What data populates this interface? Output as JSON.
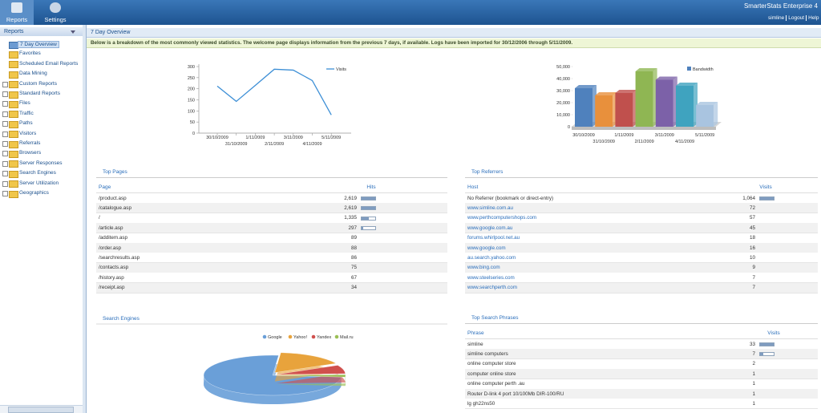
{
  "header": {
    "buttons": [
      "Reports",
      "Settings"
    ],
    "product": "SmarterStats Enterprise 4",
    "user_links": [
      "simline",
      "Logout",
      "Help"
    ]
  },
  "sidebar": {
    "title": "Reports",
    "items": [
      "7 Day Overview",
      "Favorites",
      "Scheduled Email Reports",
      "Data Mining",
      "Custom Reports",
      "Standard Reports",
      "Files",
      "Traffic",
      "Paths",
      "Visitors",
      "Referrals",
      "Browsers",
      "Server Responses",
      "Search Engines",
      "Server Utilization",
      "Geographics"
    ]
  },
  "tab": "7 Day Overview",
  "notice": "Below is a breakdown of the most commonly viewed statistics. The welcome page displays information from the previous 7 days, if available. Logs have been imported for 30/12/2006 through 5/11/2009.",
  "chart_data": [
    {
      "type": "line",
      "categories": [
        "30/10/2009",
        "31/10/2009",
        "1/11/2009",
        "2/11/2009",
        "3/11/2009",
        "4/11/2009",
        "5/11/2009"
      ],
      "series": [
        {
          "name": "Visits",
          "color": "#3d8fd6",
          "values": [
            212,
            143,
            215,
            288,
            284,
            237,
            82
          ]
        }
      ],
      "ylim": [
        0,
        300
      ],
      "yticks": [
        0,
        50,
        100,
        150,
        200,
        250,
        300
      ],
      "legend": "upper right"
    },
    {
      "type": "bar",
      "categories": [
        "30/10/2009",
        "31/10/2009",
        "1/11/2009",
        "2/11/2009",
        "3/11/2009",
        "4/11/2009",
        "5/11/2009"
      ],
      "series": [
        {
          "name": "Bandwidth",
          "color": "#4f81bd",
          "values": [
            32000,
            26000,
            28000,
            46000,
            39000,
            34000,
            18000
          ]
        }
      ],
      "bar_colors": [
        "#4f81bd",
        "#e8903c",
        "#c0504d",
        "#8fb653",
        "#7c61a8",
        "#3fa3bf",
        "#a9c4e0"
      ],
      "ylim": [
        0,
        50000
      ],
      "yticks": [
        0,
        {
          "value": 10000,
          "label": "10,000"
        },
        {
          "value": 20000,
          "label": "20,000"
        },
        {
          "value": 30000,
          "label": "30,000"
        },
        {
          "value": 40000,
          "label": "40,000"
        },
        {
          "value": 50000,
          "label": "50,000"
        }
      ],
      "legend": "upper right"
    },
    {
      "type": "pie",
      "title": "Search Engines",
      "categories": [
        "Google",
        "Yahoo!",
        "Yandex",
        "Mail.ru"
      ],
      "values": [
        75,
        16,
        7,
        2
      ],
      "colors": [
        "#6a9fd8",
        "#e8a33c",
        "#d0504d",
        "#9bbf55"
      ],
      "legend": "top"
    }
  ],
  "tables": [
    {
      "title": "Top Pages",
      "columns": [
        "Page",
        "Hits"
      ],
      "rows": [
        [
          "/product.asp",
          {
            "value": 2619,
            "label": "2,619"
          }
        ],
        [
          "/catalogue.asp",
          {
            "value": 2619,
            "label": "2,619"
          }
        ],
        [
          "/",
          {
            "value": 1335,
            "label": "1,335"
          }
        ],
        [
          "/article.asp",
          297
        ],
        [
          "/additem.asp",
          89
        ],
        [
          "/order.asp",
          88
        ],
        [
          "/searchresults.asp",
          86
        ],
        [
          "/contacts.asp",
          75
        ],
        [
          "/history.asp",
          67
        ],
        [
          "/receipt.asp",
          34
        ]
      ]
    },
    {
      "title": "Top Referrers",
      "columns": [
        "Host",
        "Visits"
      ],
      "rows": [
        [
          "No Referrer (bookmark or direct-entry)",
          {
            "value": 1064,
            "label": "1,064"
          }
        ],
        [
          "www.simline.com.au",
          72
        ],
        [
          "www.perthcomputershops.com",
          57
        ],
        [
          "www.google.com.au",
          45
        ],
        [
          "forums.whirlpool.net.au",
          18
        ],
        [
          "www.google.com",
          16
        ],
        [
          "au.search.yahoo.com",
          10
        ],
        [
          "www.bing.com",
          9
        ],
        [
          "www.steelseries.com",
          7
        ],
        [
          "www.searchperth.com",
          7
        ]
      ]
    },
    {
      "title": "Top Search Phrases",
      "columns": [
        "Phrase",
        "Visits"
      ],
      "rows": [
        [
          "simline",
          33
        ],
        [
          "simline computers",
          7
        ],
        [
          "online computer store",
          2
        ],
        [
          "computer online store",
          1
        ],
        [
          "online computer perth .au",
          1
        ],
        [
          "Router D-link 4 port 10/100Mb DIR-100/RU",
          1
        ],
        [
          "lg gh22ns50",
          1
        ]
      ]
    }
  ]
}
